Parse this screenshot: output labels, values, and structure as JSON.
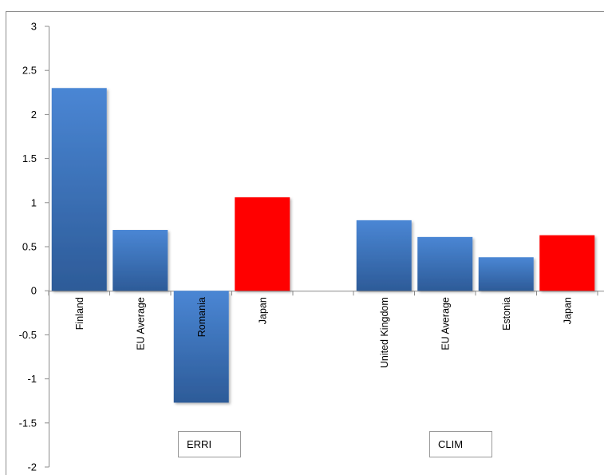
{
  "chart_data": {
    "type": "bar",
    "ylim": [
      -2,
      3
    ],
    "yticks": [
      "3",
      "2.5",
      "2",
      "1.5",
      "1",
      "0.5",
      "0",
      "-0.5",
      "-1",
      "-1.5",
      "-2"
    ],
    "grid": false,
    "groups": [
      {
        "name": "ERRI",
        "bars": [
          {
            "category": "Finland",
            "value": 2.3,
            "color": "#3a6fb5"
          },
          {
            "category": "EU Average",
            "value": 0.69,
            "color": "#3a6fb5"
          },
          {
            "category": "Romania",
            "value": -1.27,
            "color": "#3a6fb5"
          },
          {
            "category": "Japan",
            "value": 1.06,
            "color": "#ff0000"
          }
        ]
      },
      {
        "name": "CLIM",
        "bars": [
          {
            "category": "United Kingdom",
            "value": 0.8,
            "color": "#3a6fb5"
          },
          {
            "category": "EU Average",
            "value": 0.61,
            "color": "#3a6fb5"
          },
          {
            "category": "Estonia",
            "value": 0.38,
            "color": "#3a6fb5"
          },
          {
            "category": "Japan",
            "value": 0.63,
            "color": "#ff0000"
          }
        ]
      }
    ]
  }
}
